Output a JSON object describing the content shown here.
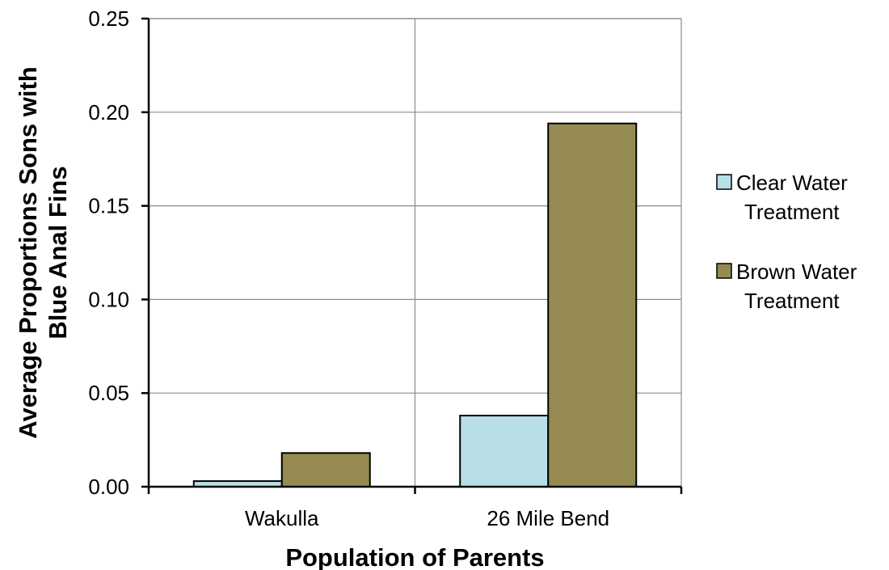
{
  "chart_data": {
    "type": "bar",
    "title": "",
    "xlabel": "Population of Parents",
    "ylabel_lines": [
      "Average Proportions Sons with",
      "Blue Anal Fins"
    ],
    "categories": [
      "Wakulla",
      "26 Mile Bend"
    ],
    "series": [
      {
        "name_lines": [
          "Clear Water",
          "Treatment"
        ],
        "color": "#b8dfe8",
        "values": [
          0.003,
          0.038
        ]
      },
      {
        "name_lines": [
          "Brown Water",
          "Treatment"
        ],
        "color": "#958b52",
        "values": [
          0.018,
          0.194
        ]
      }
    ],
    "ylim": [
      0,
      0.25
    ],
    "yticks": [
      "0.00",
      "0.05",
      "0.10",
      "0.15",
      "0.20",
      "0.25"
    ],
    "grid": true,
    "legend_position": "right"
  }
}
